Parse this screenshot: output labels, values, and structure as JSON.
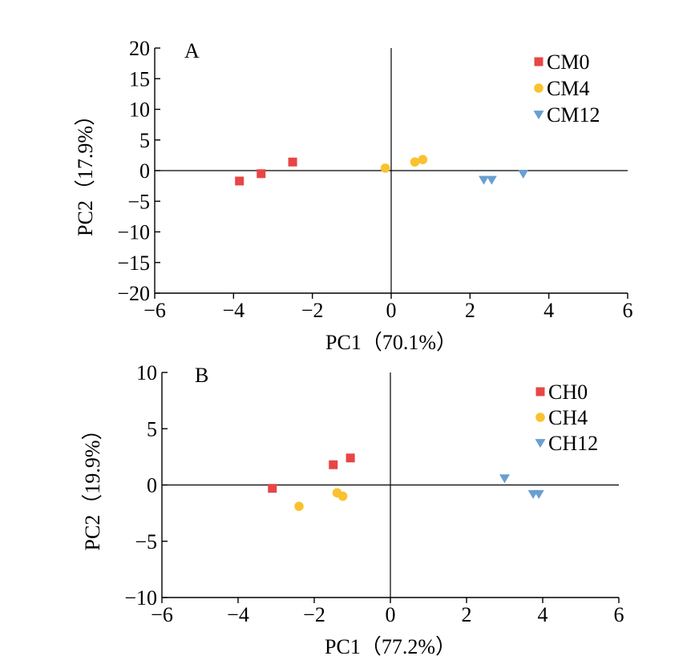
{
  "chart_data": [
    {
      "type": "scatter",
      "panel_label": "A",
      "xlabel": "PC1（70.1%）",
      "ylabel": "PC2（17.9%）",
      "xlim": [
        -6,
        6
      ],
      "ylim": [
        -20,
        20
      ],
      "xticks": [
        -6,
        -4,
        -2,
        0,
        2,
        4,
        6
      ],
      "yticks": [
        20,
        15,
        10,
        5,
        0,
        -5,
        -10,
        -15,
        -20
      ],
      "xtick_labels": [
        "−6",
        "−4",
        "−2",
        "0",
        "2",
        "4",
        "6"
      ],
      "ytick_labels": [
        "20",
        "15",
        "10",
        "5",
        "0",
        "−5",
        "−10",
        "−15",
        "−20"
      ],
      "legend_position": "top-right",
      "series": [
        {
          "name": "CM0",
          "marker": "square",
          "color": "#E84545",
          "points": [
            [
              -3.85,
              -1.7
            ],
            [
              -3.3,
              -0.5
            ],
            [
              -2.5,
              1.4
            ]
          ]
        },
        {
          "name": "CM4",
          "marker": "circle",
          "color": "#F9C22E",
          "points": [
            [
              -0.15,
              0.4
            ],
            [
              0.6,
              1.4
            ],
            [
              0.8,
              1.8
            ]
          ]
        },
        {
          "name": "CM12",
          "marker": "triangle-down",
          "color": "#6A9FCF",
          "points": [
            [
              2.35,
              -1.5
            ],
            [
              2.55,
              -1.5
            ],
            [
              3.35,
              -0.5
            ]
          ]
        }
      ]
    },
    {
      "type": "scatter",
      "panel_label": "B",
      "xlabel": "PC1（77.2%）",
      "ylabel": "PC2（19.9%）",
      "xlim": [
        -6,
        6
      ],
      "ylim": [
        -10,
        10
      ],
      "xticks": [
        -6,
        -4,
        -2,
        0,
        2,
        4,
        6
      ],
      "yticks": [
        10,
        5,
        0,
        -5,
        -10
      ],
      "xtick_labels": [
        "−6",
        "−4",
        "−2",
        "0",
        "2",
        "4",
        "6"
      ],
      "ytick_labels": [
        "10",
        "5",
        "0",
        "−5",
        "−10"
      ],
      "legend_position": "top-right",
      "series": [
        {
          "name": "CH0",
          "marker": "square",
          "color": "#E84545",
          "points": [
            [
              -3.1,
              -0.3
            ],
            [
              -1.5,
              1.8
            ],
            [
              -1.05,
              2.4
            ]
          ]
        },
        {
          "name": "CH4",
          "marker": "circle",
          "color": "#F9C22E",
          "points": [
            [
              -2.4,
              -1.9
            ],
            [
              -1.4,
              -0.7
            ],
            [
              -1.25,
              -1.0
            ]
          ]
        },
        {
          "name": "CH12",
          "marker": "triangle-down",
          "color": "#6A9FCF",
          "points": [
            [
              3.0,
              0.6
            ],
            [
              3.75,
              -0.8
            ],
            [
              3.9,
              -0.8
            ]
          ]
        }
      ]
    }
  ]
}
